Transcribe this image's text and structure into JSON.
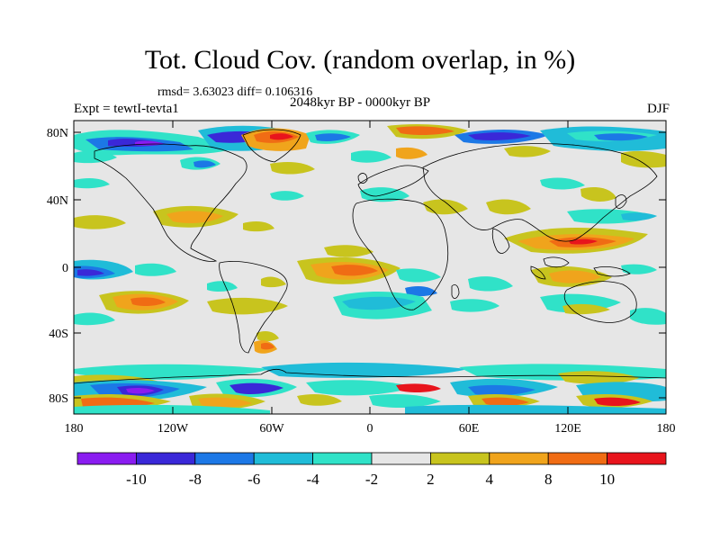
{
  "title": "Tot. Cloud Cov. (random overlap, in %)",
  "stats": "rmsd= 3.63023 diff= 0.106316",
  "period": "2048kyr BP - 0000kyr BP",
  "experiment": "Expt = tewtI-tevta1",
  "season": "DJF",
  "lat_ticks": [
    "80N",
    "40N",
    "0",
    "40S",
    "80S"
  ],
  "lon_ticks": [
    "180",
    "120W",
    "60W",
    "0",
    "60E",
    "120E",
    "180"
  ],
  "colorbar": {
    "labels": [
      "-10",
      "-8",
      "-6",
      "-4",
      "-2",
      "2",
      "4",
      "8",
      "10"
    ],
    "colors": [
      "#8a1cf0",
      "#3a28d8",
      "#1c78e6",
      "#20bcd8",
      "#30e2c8",
      "#e6e6e6",
      "#c8c41e",
      "#f0a41c",
      "#f06c14",
      "#e8141c"
    ]
  },
  "colors": {
    "land_outline": "#000000",
    "background_field": "#e6e6e6"
  }
}
